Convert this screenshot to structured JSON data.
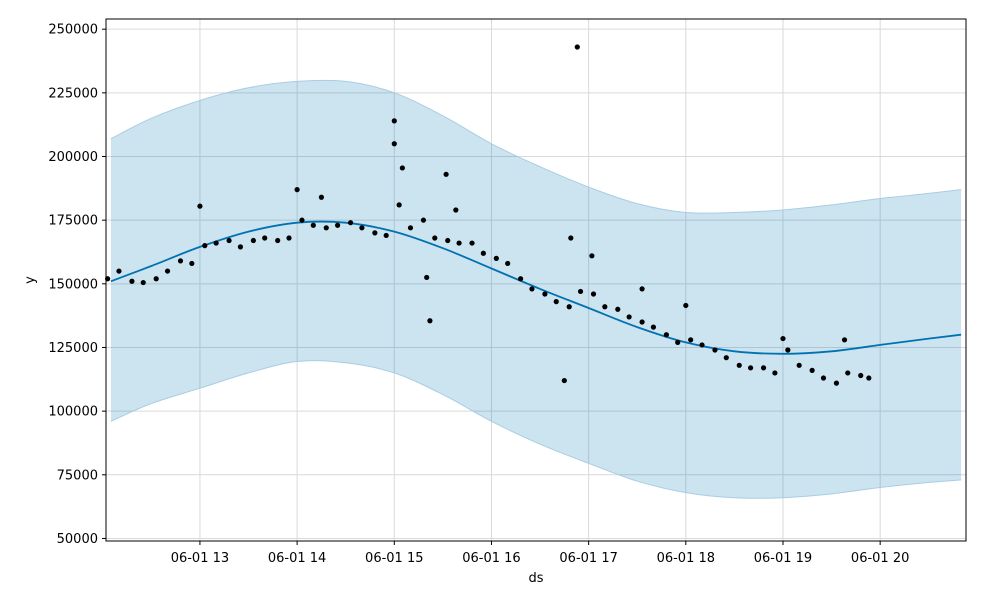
{
  "chart_data": {
    "type": "line",
    "xlabel": "ds",
    "ylabel": "y",
    "x_tick_labels": [
      "06-01 13",
      "06-01 14",
      "06-01 15",
      "06-01 16",
      "06-01 17",
      "06-01 18",
      "06-01 19",
      "06-01 20"
    ],
    "x_tick_values": [
      "2023-06-01T13:00",
      "2023-06-01T14:00",
      "2023-06-01T15:00",
      "2023-06-01T16:00",
      "2023-06-01T17:00",
      "2023-06-01T18:00",
      "2023-06-01T19:00",
      "2023-06-01T20:00"
    ],
    "y_tick_labels": [
      "50000",
      "75000",
      "100000",
      "125000",
      "150000",
      "175000",
      "200000",
      "225000",
      "250000"
    ],
    "xlim": [
      "2023-06-01T12:02",
      "2023-06-01T20:53"
    ],
    "ylim": [
      49000,
      254000
    ],
    "grid": true,
    "colors": {
      "forecast": "#0072B2",
      "interval": "#0072B2",
      "interval_edge": "#a9cde3",
      "observed": "#000000",
      "grid": "#d9d9d9"
    },
    "forecast": {
      "x": [
        "12:05",
        "12:30",
        "13:00",
        "13:30",
        "14:00",
        "14:30",
        "15:00",
        "15:30",
        "16:00",
        "16:30",
        "17:00",
        "17:30",
        "18:00",
        "18:30",
        "19:00",
        "19:30",
        "20:00",
        "20:30",
        "20:50"
      ],
      "yhat": [
        151000,
        157000,
        164500,
        170500,
        174000,
        174000,
        170500,
        164000,
        156000,
        148000,
        140500,
        133000,
        127000,
        123500,
        122500,
        123500,
        126000,
        128500,
        130000
      ]
    },
    "interval": {
      "x": [
        "12:05",
        "12:30",
        "13:00",
        "13:30",
        "14:00",
        "14:30",
        "15:00",
        "15:30",
        "16:00",
        "16:30",
        "17:00",
        "17:30",
        "18:00",
        "18:30",
        "19:00",
        "19:30",
        "20:00",
        "20:30",
        "20:50"
      ],
      "upper": [
        207000,
        215000,
        222000,
        227000,
        229500,
        229500,
        225000,
        216000,
        205000,
        196000,
        188000,
        181500,
        178000,
        178000,
        179000,
        181000,
        183500,
        185500,
        187000
      ],
      "lower": [
        96000,
        103000,
        109000,
        115000,
        119500,
        119000,
        115000,
        106500,
        96000,
        87000,
        79500,
        72500,
        68000,
        66000,
        66000,
        67500,
        70000,
        72000,
        73000
      ]
    },
    "observed": {
      "x": [
        "12:03",
        "12:10",
        "12:18",
        "12:25",
        "12:33",
        "12:40",
        "12:48",
        "12:55",
        "13:03",
        "13:10",
        "13:18",
        "13:25",
        "13:33",
        "13:40",
        "13:48",
        "13:55",
        "14:03",
        "14:10",
        "14:18",
        "14:25",
        "14:33",
        "14:40",
        "14:48",
        "14:55",
        "15:00",
        "15:03",
        "15:10",
        "15:18",
        "15:25",
        "15:33",
        "15:40",
        "15:48",
        "15:55",
        "16:03",
        "16:10",
        "16:18",
        "16:25",
        "16:33",
        "16:40",
        "16:48",
        "16:55",
        "17:03",
        "17:10",
        "17:18",
        "17:25",
        "17:33",
        "17:40",
        "17:48",
        "17:55",
        "18:03",
        "18:10",
        "18:18",
        "18:25",
        "18:33",
        "18:40",
        "18:48",
        "18:55",
        "19:03",
        "19:10",
        "19:18",
        "19:25",
        "19:33",
        "19:40",
        "19:48",
        "19:53"
      ],
      "y": [
        152000,
        155000,
        151000,
        150500,
        152000,
        155000,
        159000,
        158000,
        165000,
        166000,
        167000,
        164500,
        167000,
        168000,
        167000,
        168000,
        175000,
        173000,
        172000,
        173000,
        174000,
        172000,
        170000,
        169000,
        205000,
        181000,
        172000,
        175000,
        168000,
        167000,
        166000,
        166000,
        162000,
        160000,
        158000,
        152000,
        148000,
        146000,
        143000,
        141000,
        147000,
        146000,
        141000,
        140000,
        137000,
        135000,
        133000,
        130000,
        127000,
        128000,
        126000,
        124000,
        121000,
        118000,
        117000,
        117000,
        115000,
        124000,
        118000,
        116000,
        113000,
        111000,
        115000,
        114000,
        113000
      ]
    },
    "outliers": {
      "x": [
        "13:00",
        "14:00",
        "14:15",
        "15:00",
        "15:05",
        "15:20",
        "15:22",
        "15:32",
        "15:38",
        "16:45",
        "16:49",
        "16:53",
        "17:02",
        "17:33",
        "18:00",
        "19:00",
        "19:38"
      ],
      "y": [
        180500,
        187000,
        184000,
        214000,
        195500,
        152500,
        135500,
        193000,
        179000,
        112000,
        168000,
        243000,
        161000,
        148000,
        141500,
        128500,
        128000
      ]
    }
  }
}
